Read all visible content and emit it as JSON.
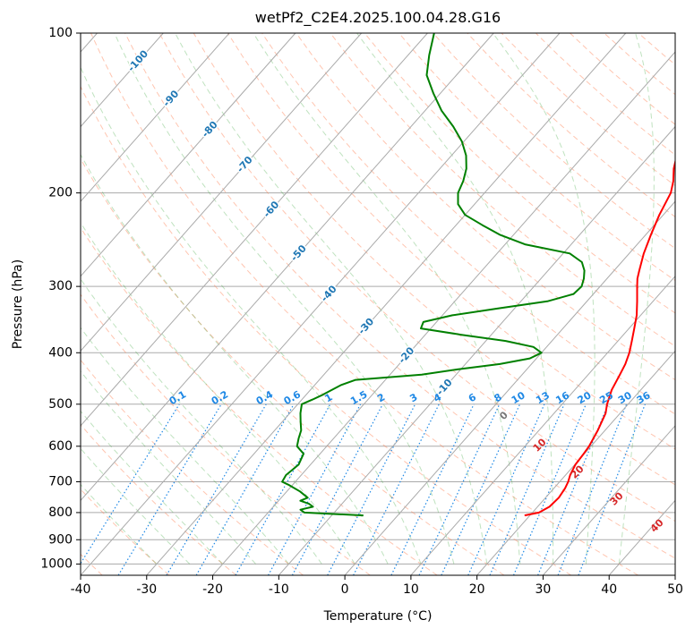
{
  "chart_data": {
    "type": "skew-t",
    "title": "wetPf2_C2E4.2025.100.04.28.G16",
    "xlabel": "Temperature (°C)",
    "ylabel": "Pressure (hPa)",
    "xlim": [
      -40,
      50
    ],
    "ylim_hpa": [
      1050,
      100
    ],
    "y_scale": "log",
    "grid": true,
    "x_ticks": [
      -40,
      -30,
      -20,
      -10,
      0,
      10,
      20,
      30,
      40,
      50
    ],
    "y_ticks": [
      100,
      200,
      300,
      400,
      500,
      600,
      700,
      800,
      900,
      1000
    ],
    "isotherm_labels": [
      -100,
      -90,
      -80,
      -70,
      -60,
      -50,
      -40,
      -30,
      -20,
      -10
    ],
    "mixing_ratio_labels": [
      "0.1",
      "0.2",
      "0.4",
      "0.6",
      "1",
      "1.5",
      "2",
      "3",
      "4",
      "6",
      "8",
      "10",
      "13",
      "16",
      "20",
      "25",
      "30",
      "36"
    ],
    "moist_adiabat_labels": [
      0,
      10,
      20,
      30,
      40
    ],
    "colors": {
      "temperature": "#ff0000",
      "dewpoint": "#008000",
      "isotherm_label": "#1f77b4",
      "mixing_ratio": "#1e88e5",
      "moist_adiabat_label": "#d62728",
      "dry_adiabat": "#ff7f50",
      "moist_adiabat": "#2ca02c",
      "grid": "#aaaaaa"
    },
    "series": [
      {
        "kind": "temperature",
        "points": [
          [
            810,
            19.2
          ],
          [
            800,
            21.0
          ],
          [
            780,
            21.8
          ],
          [
            750,
            22.0
          ],
          [
            720,
            21.7
          ],
          [
            700,
            21.3
          ],
          [
            680,
            20.7
          ],
          [
            650,
            20.1
          ],
          [
            620,
            19.9
          ],
          [
            600,
            19.7
          ],
          [
            560,
            18.9
          ],
          [
            520,
            17.8
          ],
          [
            500,
            16.8
          ],
          [
            470,
            15.6
          ],
          [
            440,
            14.8
          ],
          [
            420,
            14.2
          ],
          [
            400,
            13.3
          ],
          [
            380,
            12.1
          ],
          [
            360,
            10.8
          ],
          [
            340,
            9.4
          ],
          [
            320,
            7.6
          ],
          [
            300,
            5.6
          ],
          [
            290,
            4.6
          ],
          [
            280,
            3.8
          ],
          [
            260,
            2.2
          ],
          [
            240,
            0.8
          ],
          [
            220,
            -0.6
          ],
          [
            200,
            -1.8
          ],
          [
            190,
            -3.0
          ],
          [
            180,
            -4.6
          ],
          [
            170,
            -5.9
          ],
          [
            160,
            -7.1
          ],
          [
            150,
            -8.5
          ],
          [
            140,
            -9.9
          ],
          [
            130,
            -11.6
          ],
          [
            120,
            -14.1
          ],
          [
            110,
            -17.2
          ],
          [
            100,
            -21.0
          ]
        ]
      },
      {
        "kind": "dewpoint",
        "points": [
          [
            810,
            -5.2
          ],
          [
            805,
            -10.0
          ],
          [
            800,
            -14.5
          ],
          [
            790,
            -15.5
          ],
          [
            780,
            -14.0
          ],
          [
            770,
            -15.0
          ],
          [
            760,
            -16.7
          ],
          [
            750,
            -16.0
          ],
          [
            730,
            -18.0
          ],
          [
            710,
            -20.5
          ],
          [
            700,
            -22.0
          ],
          [
            680,
            -22.3
          ],
          [
            650,
            -21.8
          ],
          [
            620,
            -22.5
          ],
          [
            600,
            -24.5
          ],
          [
            580,
            -25.3
          ],
          [
            560,
            -26.0
          ],
          [
            540,
            -27.2
          ],
          [
            520,
            -28.4
          ],
          [
            500,
            -29.4
          ],
          [
            490,
            -28.4
          ],
          [
            480,
            -27.5
          ],
          [
            460,
            -26.0
          ],
          [
            450,
            -24.5
          ],
          [
            440,
            -15.2
          ],
          [
            430,
            -10.5
          ],
          [
            420,
            -4.8
          ],
          [
            410,
            -1.0
          ],
          [
            400,
            0.0
          ],
          [
            390,
            -2.0
          ],
          [
            380,
            -7.0
          ],
          [
            370,
            -14.5
          ],
          [
            360,
            -21.5
          ],
          [
            350,
            -22.0
          ],
          [
            340,
            -18.5
          ],
          [
            330,
            -12.5
          ],
          [
            320,
            -6.0
          ],
          [
            310,
            -3.0
          ],
          [
            300,
            -2.8
          ],
          [
            290,
            -3.5
          ],
          [
            280,
            -4.5
          ],
          [
            270,
            -6.0
          ],
          [
            260,
            -9.0
          ],
          [
            250,
            -17.0
          ],
          [
            240,
            -22.0
          ],
          [
            230,
            -26.0
          ],
          [
            220,
            -30.0
          ],
          [
            210,
            -32.5
          ],
          [
            200,
            -34.0
          ],
          [
            190,
            -34.8
          ],
          [
            180,
            -36.0
          ],
          [
            170,
            -37.8
          ],
          [
            160,
            -40.3
          ],
          [
            150,
            -43.6
          ],
          [
            140,
            -47.5
          ],
          [
            130,
            -51.0
          ],
          [
            120,
            -54.5
          ],
          [
            110,
            -56.8
          ],
          [
            100,
            -59.0
          ]
        ]
      }
    ]
  }
}
